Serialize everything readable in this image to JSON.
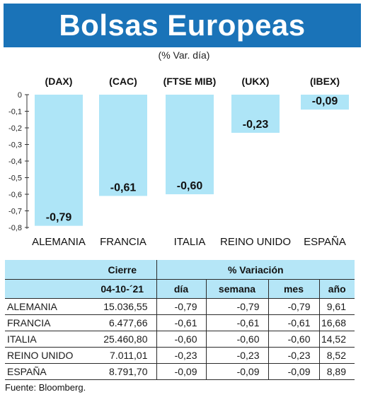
{
  "title": "Bolsas Europeas",
  "subtitle": "(% Var. día)",
  "colors": {
    "banner": "#1a73b8",
    "bar": "#aee5f7",
    "table_header": "#b5e6f7"
  },
  "chart_data": {
    "type": "bar",
    "categories": [
      "ALEMANIA",
      "FRANCIA",
      "ITALIA",
      "REINO UNIDO",
      "ESPAÑA"
    ],
    "index_labels": [
      "(DAX)",
      "(CAC)",
      "(FTSE MIB)",
      "(UKX)",
      "(IBEX)"
    ],
    "values": [
      -0.79,
      -0.61,
      -0.6,
      -0.23,
      -0.09
    ],
    "value_labels": [
      "-0,79",
      "-0,61",
      "-0,60",
      "-0,23",
      "-0,09"
    ],
    "ylim": [
      -0.8,
      0
    ],
    "yticks": [
      0,
      -0.1,
      -0.2,
      -0.3,
      -0.4,
      -0.5,
      -0.6,
      -0.7,
      -0.8
    ],
    "ytick_labels": [
      "0",
      "-0,1",
      "-0,2",
      "-0,3",
      "-0,4",
      "-0,5",
      "-0,6",
      "-0,7",
      "-0,8"
    ],
    "grid": false,
    "legend": "none"
  },
  "table": {
    "headers": {
      "cierre": "Cierre",
      "variacion": "% Variación",
      "date": "04-10-´21",
      "dia": "día",
      "semana": "semana",
      "mes": "mes",
      "anio": "año"
    },
    "rows": [
      {
        "name": "ALEMANIA",
        "cierre": "15.036,55",
        "dia": "-0,79",
        "semana": "-0,79",
        "mes": "-0,79",
        "anio": "9,61"
      },
      {
        "name": "FRANCIA",
        "cierre": "6.477,66",
        "dia": "-0,61",
        "semana": "-0,61",
        "mes": "-0,61",
        "anio": "16,68"
      },
      {
        "name": "ITALIA",
        "cierre": "25.460,80",
        "dia": "-0,60",
        "semana": "-0,60",
        "mes": "-0,60",
        "anio": "14,52"
      },
      {
        "name": "REINO UNIDO",
        "cierre": "7.011,01",
        "dia": "-0,23",
        "semana": "-0,23",
        "mes": "-0,23",
        "anio": "8,52"
      },
      {
        "name": "ESPAÑA",
        "cierre": "8.791,70",
        "dia": "-0,09",
        "semana": "-0,09",
        "mes": "-0,09",
        "anio": "8,89"
      }
    ]
  },
  "source": "Fuente: Bloomberg."
}
